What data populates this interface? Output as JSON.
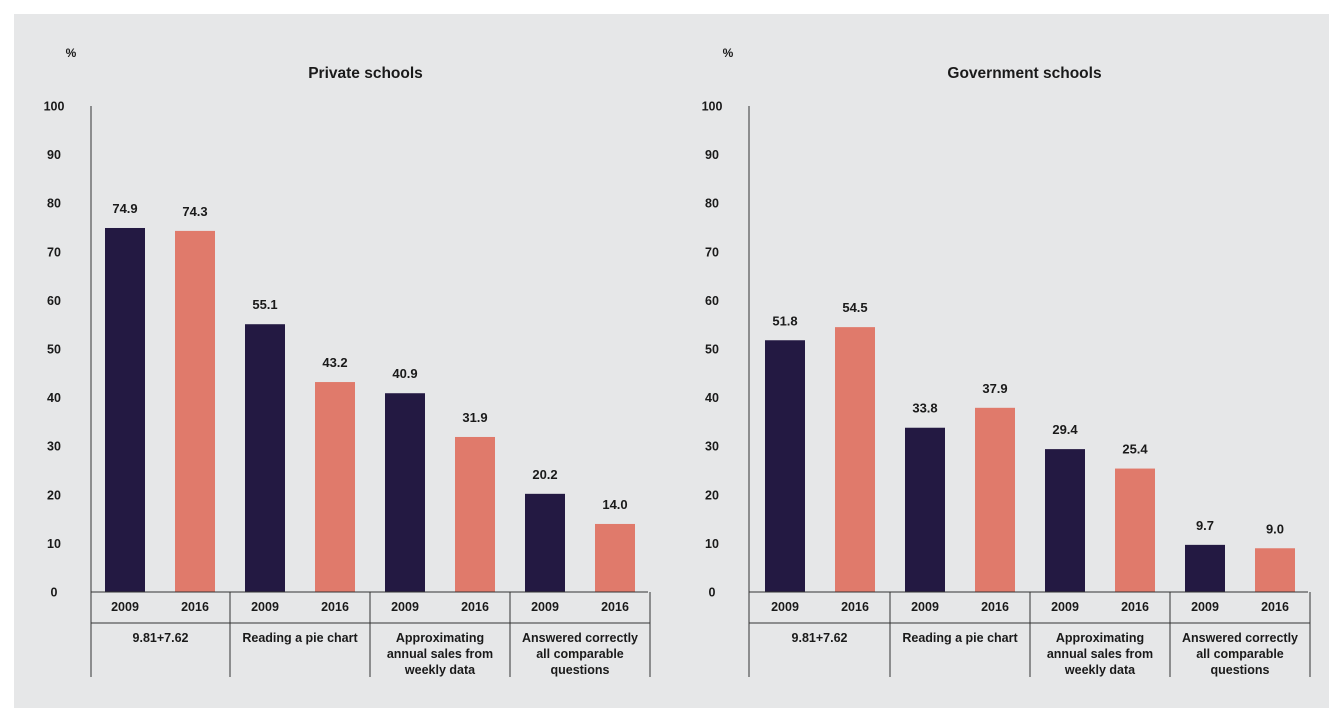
{
  "colors": {
    "series_2009": "#231942",
    "series_2016": "#e07a6b",
    "background": "#e6e7e8",
    "axis": "#333333"
  },
  "chart_data": [
    {
      "type": "bar",
      "title": "Private schools",
      "ylabel": "%",
      "ylim": [
        0,
        100
      ],
      "yticks": [
        0,
        10,
        20,
        30,
        40,
        50,
        60,
        70,
        80,
        90,
        100
      ],
      "grid": false,
      "groups": [
        "9.81+7.62",
        "Reading a pie chart",
        "Approximating annual sales from weekly data",
        "Answered correctly all comparable questions"
      ],
      "bar_labels": [
        "2009",
        "2016"
      ],
      "series": [
        {
          "label": "2009",
          "values": [
            74.9,
            55.1,
            40.9,
            20.2
          ]
        },
        {
          "label": "2016",
          "values": [
            74.3,
            43.2,
            31.9,
            14.0
          ]
        }
      ],
      "value_labels": [
        [
          "74.9",
          "55.1",
          "40.9",
          "20.2"
        ],
        [
          "74.3",
          "43.2",
          "31.9",
          "14.0"
        ]
      ]
    },
    {
      "type": "bar",
      "title": "Government schools",
      "ylabel": "%",
      "ylim": [
        0,
        100
      ],
      "yticks": [
        0,
        10,
        20,
        30,
        40,
        50,
        60,
        70,
        80,
        90,
        100
      ],
      "grid": false,
      "groups": [
        "9.81+7.62",
        "Reading a pie chart",
        "Approximating annual sales from weekly data",
        "Answered correctly all comparable questions"
      ],
      "bar_labels": [
        "2009",
        "2016"
      ],
      "series": [
        {
          "label": "2009",
          "values": [
            51.8,
            33.8,
            29.4,
            9.7
          ]
        },
        {
          "label": "2016",
          "values": [
            54.5,
            37.9,
            25.4,
            9.0
          ]
        }
      ],
      "value_labels": [
        [
          "51.8",
          "33.8",
          "29.4",
          "9.7"
        ],
        [
          "54.5",
          "37.9",
          "25.4",
          "9.0"
        ]
      ]
    }
  ]
}
